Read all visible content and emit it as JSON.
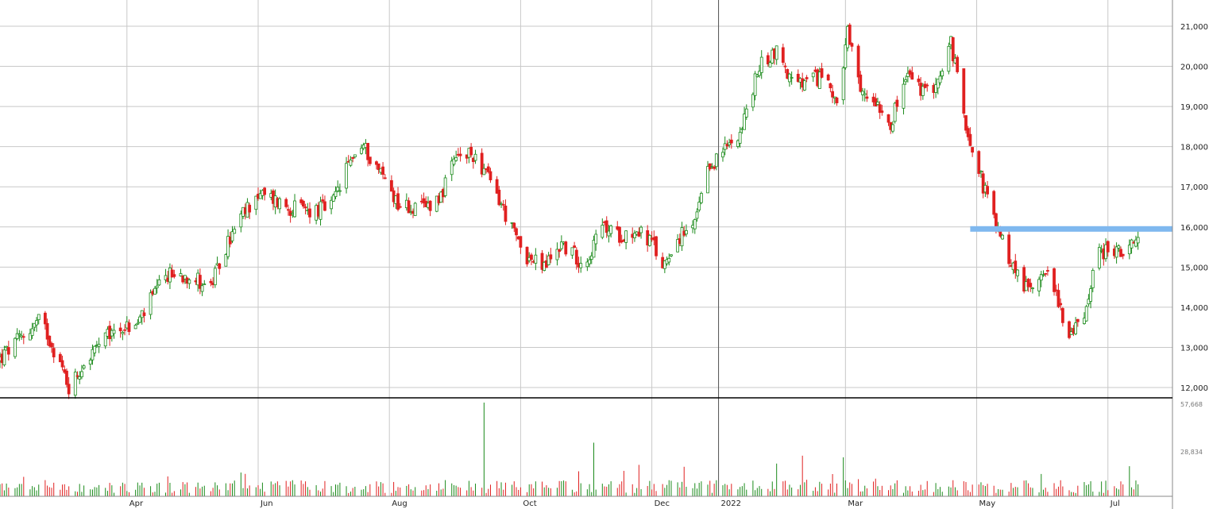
{
  "chart_data": [
    {
      "type": "candlestick",
      "title": "",
      "xlabel": "",
      "ylabel": "",
      "ylim": [
        11800,
        21600
      ],
      "grid": true,
      "y_ticks": [
        "12,000",
        "13,000",
        "14,000",
        "15,000",
        "16,000",
        "17,000",
        "18,000",
        "19,000",
        "20,000",
        "21,000"
      ],
      "y_tick_values": [
        12000,
        13000,
        14000,
        15000,
        16000,
        17000,
        18000,
        19000,
        20000,
        21000
      ],
      "x_ticks": [
        {
          "label": "Apr",
          "date": "2021-04-01"
        },
        {
          "label": "Jun",
          "date": "2021-06-01"
        },
        {
          "label": "Aug",
          "date": "2021-08-01"
        },
        {
          "label": "Oct",
          "date": "2021-10-01"
        },
        {
          "label": "Dec",
          "date": "2021-12-01"
        },
        {
          "label": "2022",
          "date": "2022-01-01"
        },
        {
          "label": "Mar",
          "date": "2022-03-01"
        },
        {
          "label": "May",
          "date": "2022-05-01"
        },
        {
          "label": "Jul",
          "date": "2022-07-01"
        }
      ],
      "date_range": [
        "2021-02-01",
        "2022-07-15"
      ],
      "close_path": [
        [
          "2021-02-01",
          12700
        ],
        [
          "2021-02-10",
          13200
        ],
        [
          "2021-02-20",
          13700
        ],
        [
          "2021-03-01",
          12600
        ],
        [
          "2021-03-05",
          12000
        ],
        [
          "2021-03-12",
          12600
        ],
        [
          "2021-03-20",
          13100
        ],
        [
          "2021-03-28",
          13500
        ],
        [
          "2021-04-05",
          13500
        ],
        [
          "2021-04-10",
          14000
        ],
        [
          "2021-04-20",
          14800
        ],
        [
          "2021-04-30",
          14800
        ],
        [
          "2021-05-10",
          14500
        ],
        [
          "2021-05-18",
          15600
        ],
        [
          "2021-05-25",
          16300
        ],
        [
          "2021-05-31",
          16800
        ],
        [
          "2021-06-08",
          16700
        ],
        [
          "2021-06-15",
          16500
        ],
        [
          "2021-06-25",
          16400
        ],
        [
          "2021-07-05",
          16500
        ],
        [
          "2021-07-15",
          17800
        ],
        [
          "2021-07-20",
          18000
        ],
        [
          "2021-07-30",
          17200
        ],
        [
          "2021-08-05",
          16600
        ],
        [
          "2021-08-15",
          16400
        ],
        [
          "2021-08-25",
          16800
        ],
        [
          "2021-09-01",
          17700
        ],
        [
          "2021-09-10",
          17800
        ],
        [
          "2021-09-20",
          16800
        ],
        [
          "2021-09-28",
          15800
        ],
        [
          "2021-10-05",
          15200
        ],
        [
          "2021-10-12",
          15000
        ],
        [
          "2021-10-20",
          15600
        ],
        [
          "2021-10-28",
          15200
        ],
        [
          "2021-11-01",
          15200
        ],
        [
          "2021-11-08",
          16000
        ],
        [
          "2021-11-15",
          15800
        ],
        [
          "2021-11-25",
          15900
        ],
        [
          "2021-12-01",
          15600
        ],
        [
          "2021-12-06",
          15000
        ],
        [
          "2021-12-12",
          15700
        ],
        [
          "2021-12-20",
          15900
        ],
        [
          "2021-12-28",
          17500
        ],
        [
          "2022-01-05",
          18000
        ],
        [
          "2022-01-12",
          18500
        ],
        [
          "2022-01-20",
          20000
        ],
        [
          "2022-01-28",
          20400
        ],
        [
          "2022-02-05",
          19500
        ],
        [
          "2022-02-12",
          19600
        ],
        [
          "2022-02-20",
          19800
        ],
        [
          "2022-02-26",
          19000
        ],
        [
          "2022-03-02",
          20800
        ],
        [
          "2022-03-08",
          19300
        ],
        [
          "2022-03-15",
          19200
        ],
        [
          "2022-03-22",
          18600
        ],
        [
          "2022-03-30",
          19800
        ],
        [
          "2022-04-07",
          19300
        ],
        [
          "2022-04-15",
          19800
        ],
        [
          "2022-04-19",
          20600
        ],
        [
          "2022-04-25",
          18800
        ],
        [
          "2022-05-02",
          17400
        ],
        [
          "2022-05-10",
          16000
        ],
        [
          "2022-05-18",
          15000
        ],
        [
          "2022-05-25",
          14400
        ],
        [
          "2022-06-01",
          15000
        ],
        [
          "2022-06-08",
          14200
        ],
        [
          "2022-06-13",
          13200
        ],
        [
          "2022-06-20",
          13800
        ],
        [
          "2022-06-25",
          15200
        ],
        [
          "2022-07-01",
          15500
        ],
        [
          "2022-07-08",
          15300
        ],
        [
          "2022-07-15",
          15600
        ]
      ],
      "annotations": [
        {
          "type": "horizontal-line",
          "value": 15950,
          "from": "2022-04-28",
          "to": "2022-07-31",
          "color": "#7fb8ef"
        },
        {
          "type": "vertical-line",
          "date": "2022-01-01",
          "color": "#555555"
        }
      ],
      "colors": {
        "up": "#1a8a1a",
        "down": "#e02020"
      }
    },
    {
      "type": "bar",
      "title": "",
      "series_name": "",
      "y_ticks": [
        "57,668",
        "28,834"
      ],
      "y_tick_values": [
        57668,
        28834
      ],
      "ylim": [
        0,
        57668
      ],
      "max_value": 57668,
      "spikes": [
        {
          "date": "2021-09-15",
          "value": 57668
        },
        {
          "date": "2021-11-05",
          "value": 33000
        },
        {
          "date": "2022-02-10",
          "value": 25000
        },
        {
          "date": "2022-03-01",
          "value": 24000
        }
      ],
      "typical_range": [
        2000,
        10000
      ],
      "colors": {
        "up": "#1a8a1a",
        "down": "#e02020"
      }
    }
  ]
}
